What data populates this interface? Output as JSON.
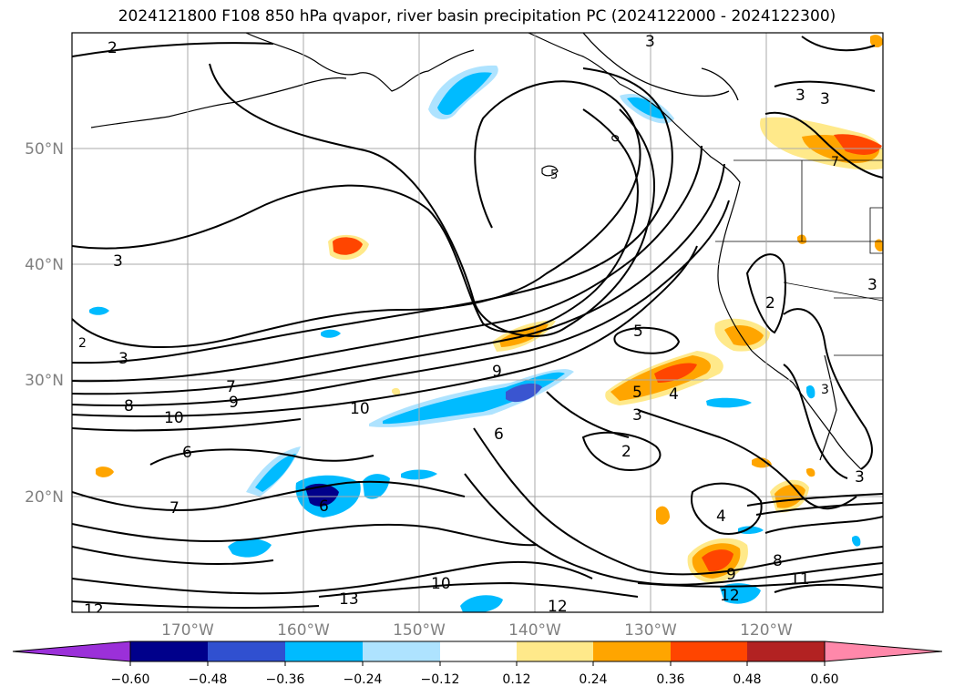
{
  "title": "2024121800 F108 850 hPa qvapor, river basin precipitation PC (2024122000 - 2024122300)",
  "axes": {
    "lat_labels": [
      "50°N",
      "40°N",
      "30°N",
      "20°N"
    ],
    "lon_labels": [
      "170°W",
      "160°W",
      "150°W",
      "140°W",
      "130°W",
      "120°W"
    ],
    "label_color": "#808080"
  },
  "colorbar": {
    "ticks": [
      "−0.60",
      "−0.48",
      "−0.36",
      "−0.24",
      "−0.12",
      "0.12",
      "0.24",
      "0.36",
      "0.48",
      "0.60"
    ],
    "under_color": "#9b30d9",
    "over_color": "#ff88aa",
    "colors": [
      "#00008b",
      "#3050d0",
      "#00bbff",
      "#aee3ff",
      "#ffffff",
      "#ffe98a",
      "#ffa500",
      "#ff4500",
      "#b22222"
    ]
  },
  "contour_labels": [
    "2",
    "3",
    "3",
    "3",
    "3",
    "3",
    "3",
    "7",
    "8",
    "9",
    "10",
    "10",
    "6",
    "7",
    "9",
    "6",
    "5",
    "5",
    "4",
    "3",
    "2",
    "6",
    "4",
    "8",
    "9",
    "11",
    "12",
    "12",
    "13",
    "10",
    "12",
    "2",
    "3",
    "5",
    "2",
    "3",
    "7"
  ]
}
